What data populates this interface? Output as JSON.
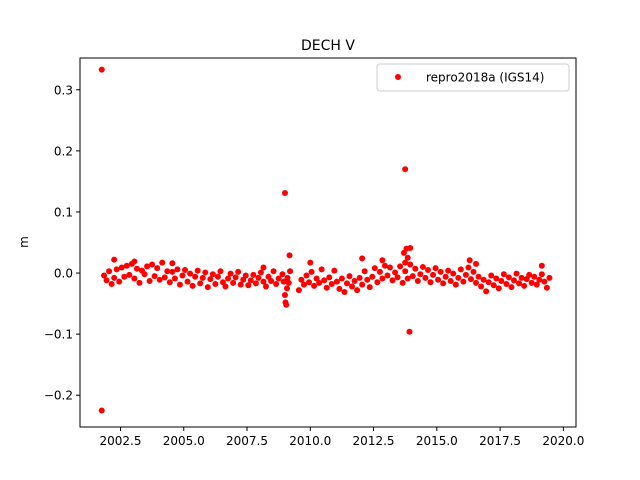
{
  "chart_data": {
    "type": "scatter",
    "title": "DECH V",
    "xlabel": "",
    "ylabel": "m",
    "xlim": [
      2000.9,
      2020.5
    ],
    "ylim": [
      -0.252,
      0.352
    ],
    "x_ticks": [
      2002.5,
      2005.0,
      2007.5,
      2010.0,
      2012.5,
      2015.0,
      2017.5,
      2020.0
    ],
    "x_tick_labels": [
      "2002.5",
      "2005.0",
      "2007.5",
      "2010.0",
      "2012.5",
      "2015.0",
      "2017.5",
      "2020.0"
    ],
    "y_ticks": [
      -0.2,
      -0.1,
      0.0,
      0.1,
      0.2,
      0.3
    ],
    "y_tick_labels": [
      "−0.2",
      "−0.1",
      "0.0",
      "0.1",
      "0.2",
      "0.3"
    ],
    "grid": false,
    "legend_position": "top-right",
    "series": [
      {
        "name": "repro2018a (IGS14)",
        "color": "#ff0000",
        "marker": "circle",
        "points": [
          [
            2001.76,
            0.333
          ],
          [
            2001.76,
            -0.225
          ],
          [
            2001.85,
            -0.004
          ],
          [
            2001.95,
            -0.012
          ],
          [
            2002.05,
            0.003
          ],
          [
            2002.15,
            -0.018
          ],
          [
            2002.25,
            -0.008
          ],
          [
            2002.35,
            0.006
          ],
          [
            2002.45,
            -0.014
          ],
          [
            2002.55,
            0.009
          ],
          [
            2002.65,
            -0.006
          ],
          [
            2002.75,
            0.012
          ],
          [
            2002.85,
            -0.003
          ],
          [
            2002.95,
            0.015
          ],
          [
            2003.05,
            -0.009
          ],
          [
            2003.15,
            0.007
          ],
          [
            2003.25,
            -0.016
          ],
          [
            2003.35,
            0.004
          ],
          [
            2003.45,
            -0.002
          ],
          [
            2003.55,
            0.011
          ],
          [
            2003.65,
            -0.013
          ],
          [
            2003.75,
            0.014
          ],
          [
            2003.85,
            -0.005
          ],
          [
            2003.95,
            0.008
          ],
          [
            2004.05,
            -0.011
          ],
          [
            2004.15,
            0.017
          ],
          [
            2004.25,
            -0.007
          ],
          [
            2004.35,
            0.003
          ],
          [
            2004.45,
            -0.015
          ],
          [
            2004.55,
            0.002
          ],
          [
            2004.65,
            -0.009
          ],
          [
            2004.75,
            0.006
          ],
          [
            2004.85,
            -0.019
          ],
          [
            2004.95,
            -0.004
          ],
          [
            2005.05,
            0.005
          ],
          [
            2005.15,
            -0.014
          ],
          [
            2005.25,
            -0.001
          ],
          [
            2005.35,
            -0.021
          ],
          [
            2005.45,
            -0.006
          ],
          [
            2005.55,
            0.004
          ],
          [
            2005.65,
            -0.017
          ],
          [
            2005.75,
            -0.008
          ],
          [
            2005.85,
            0.001
          ],
          [
            2005.95,
            -0.023
          ],
          [
            2006.05,
            -0.01
          ],
          [
            2006.15,
            -0.002
          ],
          [
            2006.25,
            -0.018
          ],
          [
            2006.35,
            -0.006
          ],
          [
            2006.45,
            0.003
          ],
          [
            2006.55,
            -0.015
          ],
          [
            2006.65,
            -0.022
          ],
          [
            2006.75,
            -0.009
          ],
          [
            2006.85,
            -0.001
          ],
          [
            2006.95,
            -0.016
          ],
          [
            2007.05,
            -0.007
          ],
          [
            2007.15,
            0.002
          ],
          [
            2007.25,
            -0.019
          ],
          [
            2007.35,
            -0.011
          ],
          [
            2007.45,
            -0.004
          ],
          [
            2007.55,
            -0.02
          ],
          [
            2007.65,
            -0.012
          ],
          [
            2007.75,
            -0.003
          ],
          [
            2007.85,
            -0.017
          ],
          [
            2007.95,
            -0.008
          ],
          [
            2008.05,
            0.001
          ],
          [
            2008.15,
            -0.014
          ],
          [
            2008.25,
            -0.022
          ],
          [
            2008.35,
            -0.006
          ],
          [
            2008.45,
            -0.013
          ],
          [
            2008.55,
            0.003
          ],
          [
            2008.65,
            -0.018
          ],
          [
            2008.75,
            -0.009
          ],
          [
            2008.9,
            -0.002
          ],
          [
            2008.95,
            -0.014
          ],
          [
            2009.0,
            -0.036
          ],
          [
            2009.02,
            -0.048
          ],
          [
            2009.05,
            -0.052
          ],
          [
            2009.08,
            -0.025
          ],
          [
            2009.1,
            -0.008
          ],
          [
            2009.15,
            -0.016
          ],
          [
            2009.2,
            0.003
          ],
          [
            2009.0,
            0.131
          ],
          [
            2009.18,
            0.029
          ],
          [
            2009.55,
            -0.028
          ],
          [
            2009.65,
            -0.011
          ],
          [
            2009.75,
            -0.019
          ],
          [
            2009.85,
            -0.004
          ],
          [
            2009.95,
            -0.015
          ],
          [
            2010.05,
            0.002
          ],
          [
            2010.15,
            -0.021
          ],
          [
            2010.25,
            -0.009
          ],
          [
            2010.35,
            -0.016
          ],
          [
            2010.45,
            0.006
          ],
          [
            2010.55,
            -0.012
          ],
          [
            2010.65,
            -0.024
          ],
          [
            2010.75,
            -0.007
          ],
          [
            2010.85,
            -0.018
          ],
          [
            2010.95,
            0.004
          ],
          [
            2011.05,
            -0.014
          ],
          [
            2011.15,
            -0.026
          ],
          [
            2011.25,
            -0.009
          ],
          [
            2011.35,
            -0.031
          ],
          [
            2011.45,
            -0.017
          ],
          [
            2011.55,
            -0.005
          ],
          [
            2011.65,
            -0.022
          ],
          [
            2011.75,
            -0.013
          ],
          [
            2011.85,
            -0.028
          ],
          [
            2011.95,
            -0.008
          ],
          [
            2012.05,
            -0.019
          ],
          [
            2012.15,
            0.003
          ],
          [
            2012.25,
            -0.011
          ],
          [
            2012.35,
            -0.023
          ],
          [
            2012.45,
            -0.006
          ],
          [
            2012.55,
            0.008
          ],
          [
            2012.65,
            -0.015
          ],
          [
            2012.75,
            0.002
          ],
          [
            2012.85,
            -0.009
          ],
          [
            2012.95,
            0.012
          ],
          [
            2013.05,
            -0.004
          ],
          [
            2013.15,
            0.009
          ],
          [
            2013.25,
            -0.012
          ],
          [
            2013.35,
            0.001
          ],
          [
            2013.45,
            -0.007
          ],
          [
            2013.55,
            0.011
          ],
          [
            2013.65,
            -0.016
          ],
          [
            2013.75,
            0.003
          ],
          [
            2013.85,
            -0.009
          ],
          [
            2013.95,
            0.014
          ],
          [
            2014.05,
            -0.005
          ],
          [
            2014.15,
            0.007
          ],
          [
            2014.25,
            -0.013
          ],
          [
            2014.35,
            -0.002
          ],
          [
            2014.45,
            0.01
          ],
          [
            2014.55,
            -0.008
          ],
          [
            2014.65,
            0.005
          ],
          [
            2014.75,
            -0.015
          ],
          [
            2014.85,
            -0.003
          ],
          [
            2014.95,
            0.008
          ],
          [
            2015.05,
            -0.011
          ],
          [
            2015.15,
            0.002
          ],
          [
            2015.25,
            -0.017
          ],
          [
            2015.35,
            -0.006
          ],
          [
            2015.45,
            0.004
          ],
          [
            2015.55,
            -0.013
          ],
          [
            2015.65,
            -0.001
          ],
          [
            2015.75,
            -0.019
          ],
          [
            2015.85,
            -0.008
          ],
          [
            2015.95,
            0.006
          ],
          [
            2016.05,
            -0.014
          ],
          [
            2016.15,
            -0.003
          ],
          [
            2016.25,
            0.009
          ],
          [
            2016.35,
            -0.01
          ],
          [
            2016.45,
            0.002
          ],
          [
            2016.55,
            -0.016
          ],
          [
            2016.65,
            -0.006
          ],
          [
            2016.75,
            -0.022
          ],
          [
            2016.85,
            -0.011
          ],
          [
            2016.95,
            -0.03
          ],
          [
            2017.05,
            -0.015
          ],
          [
            2017.15,
            -0.004
          ],
          [
            2017.25,
            -0.02
          ],
          [
            2017.35,
            -0.009
          ],
          [
            2017.45,
            -0.025
          ],
          [
            2017.55,
            -0.013
          ],
          [
            2017.65,
            -0.002
          ],
          [
            2017.75,
            -0.018
          ],
          [
            2017.85,
            -0.007
          ],
          [
            2017.95,
            -0.023
          ],
          [
            2018.05,
            -0.012
          ],
          [
            2018.15,
            -0.001
          ],
          [
            2018.25,
            -0.017
          ],
          [
            2018.35,
            -0.008
          ],
          [
            2018.45,
            -0.021
          ],
          [
            2018.55,
            -0.01
          ],
          [
            2018.65,
            -0.003
          ],
          [
            2018.75,
            -0.016
          ],
          [
            2018.85,
            -0.006
          ],
          [
            2018.95,
            -0.019
          ],
          [
            2019.05,
            -0.011
          ],
          [
            2019.15,
            -0.002
          ],
          [
            2019.25,
            -0.014
          ],
          [
            2019.35,
            -0.024
          ],
          [
            2019.45,
            -0.008
          ],
          [
            2002.25,
            0.022
          ],
          [
            2003.05,
            0.019
          ],
          [
            2004.55,
            0.016
          ],
          [
            2008.15,
            0.009
          ],
          [
            2010.0,
            0.017
          ],
          [
            2012.05,
            0.024
          ],
          [
            2012.85,
            0.021
          ],
          [
            2016.3,
            0.021
          ],
          [
            2016.55,
            0.015
          ],
          [
            2019.15,
            0.012
          ],
          [
            2013.7,
            0.033
          ],
          [
            2013.8,
            0.04
          ],
          [
            2013.95,
            0.041
          ],
          [
            2013.75,
            0.017
          ],
          [
            2013.85,
            0.025
          ],
          [
            2013.75,
            0.17
          ],
          [
            2013.92,
            -0.096
          ]
        ]
      }
    ]
  }
}
